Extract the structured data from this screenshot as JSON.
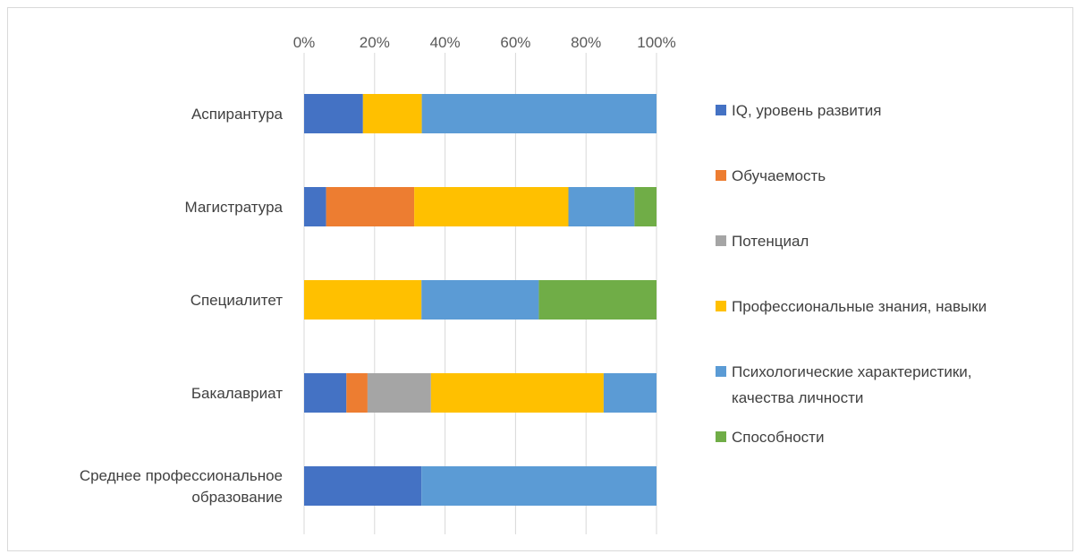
{
  "chart_data": {
    "type": "bar",
    "orientation": "horizontal",
    "stacked": "percent",
    "title": "",
    "xlabel": "",
    "ylabel": "",
    "xlim": [
      0,
      100
    ],
    "x_ticks": [
      "0%",
      "20%",
      "40%",
      "60%",
      "80%",
      "100%"
    ],
    "x_axis_position": "top",
    "grid": true,
    "legend_position": "right",
    "categories": [
      "Аспирантура",
      "Магистратура",
      "Специалитет",
      "Бакалавриат",
      "Среднее профессиональное образование"
    ],
    "category_label_lines": [
      [
        "Аспирантура"
      ],
      [
        "Магистратура"
      ],
      [
        "Специалитет"
      ],
      [
        "Бакалавриат"
      ],
      [
        "Среднее профессиональное",
        "образование"
      ]
    ],
    "series": [
      {
        "name": "IQ, уровень развития",
        "color": "#4472C4",
        "values": [
          16.7,
          6.25,
          0,
          12,
          33.3
        ]
      },
      {
        "name": "Обучаемость",
        "color": "#ED7D31",
        "values": [
          0,
          25,
          0,
          6,
          0
        ]
      },
      {
        "name": "Потенциал",
        "color": "#A5A5A5",
        "values": [
          0,
          0,
          0,
          18,
          0
        ]
      },
      {
        "name": "Профессиональные знания, навыки",
        "color": "#FFC000",
        "values": [
          16.7,
          43.75,
          33.3,
          49,
          0
        ]
      },
      {
        "name": "Психологические характеристики, качества личности",
        "color": "#5B9BD5",
        "values": [
          66.6,
          18.75,
          33.3,
          15,
          66.7
        ]
      },
      {
        "name": "Способности",
        "color": "#70AD47",
        "values": [
          0,
          6.25,
          33.4,
          0,
          0
        ]
      }
    ],
    "legend_label_lines": [
      [
        "IQ, уровень развития"
      ],
      [
        "Обучаемость"
      ],
      [
        "Потенциал"
      ],
      [
        "Профессиональные знания, навыки"
      ],
      [
        "Психологические характеристики,",
        "качества личности"
      ],
      [
        "Способности"
      ]
    ]
  }
}
